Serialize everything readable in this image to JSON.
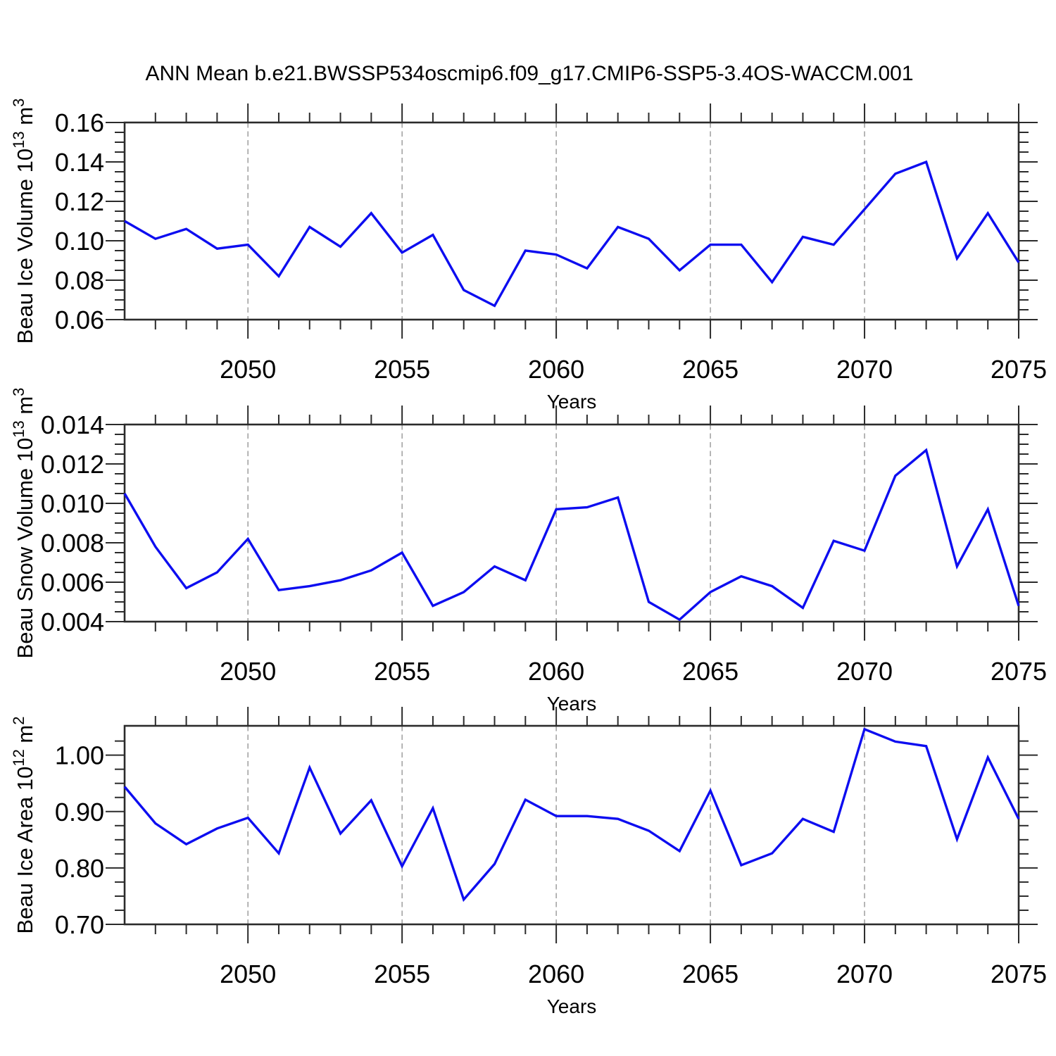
{
  "title": "ANN Mean b.e21.BWSSP534oscmip6.f09_g17.CMIP6-SSP5-3.4OS-WACCM.001",
  "x_axis": {
    "label": "Years",
    "range": [
      2046,
      2075
    ],
    "tick_years": [
      2050,
      2055,
      2060,
      2065,
      2070,
      2075
    ],
    "tick_labels": [
      "2050",
      "2055",
      "2060",
      "2065",
      "2070",
      "2075"
    ],
    "gridline_years": [
      2050,
      2055,
      2060,
      2065,
      2070
    ],
    "minor_step": 1
  },
  "style": {
    "line_color": "#0d0df0",
    "frame_color": "#2b2b2b",
    "grid_color": "#8f8f8f",
    "text_color": "#000000",
    "background": "#ffffff"
  },
  "years": [
    2046,
    2047,
    2048,
    2049,
    2050,
    2051,
    2052,
    2053,
    2054,
    2055,
    2056,
    2057,
    2058,
    2059,
    2060,
    2061,
    2062,
    2063,
    2064,
    2065,
    2066,
    2067,
    2068,
    2069,
    2070,
    2071,
    2072,
    2073,
    2074,
    2075
  ],
  "chart_data": [
    {
      "type": "line",
      "title": "Beau Ice Volume",
      "xlabel": "Years",
      "ylabel": {
        "text": "Beau Ice Volume 10",
        "sup": "13",
        "unit": " m",
        "unit_sup": "3",
        "plain": "Beau Ice Volume 10^13 m^3"
      },
      "ylim": [
        0.06,
        0.16
      ],
      "frame_top": 0.16,
      "yticks": [
        0.06,
        0.08,
        0.1,
        0.12,
        0.14,
        0.16
      ],
      "ytick_labels": [
        "0.06",
        "0.08",
        "0.10",
        "0.12",
        "0.14",
        "0.16"
      ],
      "y_minor_step": 0.005,
      "grid": "vertical-dashed",
      "legend": "none",
      "values": [
        0.11,
        0.101,
        0.106,
        0.096,
        0.098,
        0.082,
        0.107,
        0.097,
        0.114,
        0.094,
        0.103,
        0.075,
        0.067,
        0.095,
        0.093,
        0.086,
        0.107,
        0.101,
        0.085,
        0.098,
        0.098,
        0.079,
        0.102,
        0.098,
        0.116,
        0.134,
        0.14,
        0.091,
        0.114,
        0.089
      ]
    },
    {
      "type": "line",
      "title": "Beau Snow Volume",
      "xlabel": "Years",
      "ylabel": {
        "text": "Beau Snow Volume 10",
        "sup": "13",
        "unit": " m",
        "unit_sup": "3",
        "plain": "Beau Snow Volume 10^13 m^3"
      },
      "ylim": [
        0.004,
        0.014
      ],
      "frame_top": 0.014,
      "yticks": [
        0.004,
        0.006,
        0.008,
        0.01,
        0.012,
        0.014
      ],
      "ytick_labels": [
        "0.004",
        "0.006",
        "0.008",
        "0.010",
        "0.012",
        "0.014"
      ],
      "y_minor_step": 0.0005,
      "grid": "vertical-dashed",
      "legend": "none",
      "values": [
        0.0105,
        0.0078,
        0.0057,
        0.0065,
        0.0082,
        0.0056,
        0.0058,
        0.0061,
        0.0066,
        0.0075,
        0.0048,
        0.0055,
        0.0068,
        0.0061,
        0.0097,
        0.0098,
        0.0103,
        0.005,
        0.0041,
        0.0055,
        0.0063,
        0.0058,
        0.0047,
        0.0081,
        0.0076,
        0.0114,
        0.0127,
        0.0068,
        0.0097,
        0.0048
      ]
    },
    {
      "type": "line",
      "title": "Beau Ice Area",
      "xlabel": "Years",
      "ylabel": {
        "text": "Beau Ice Area 10",
        "sup": "12",
        "unit": " m",
        "unit_sup": "2",
        "plain": "Beau Ice Area 10^12 m^2"
      },
      "ylim": [
        0.7,
        1.05
      ],
      "frame_top": 1.052,
      "yticks": [
        0.7,
        0.8,
        0.9,
        1.0
      ],
      "ytick_labels": [
        "0.70",
        "0.80",
        "0.90",
        "1.00"
      ],
      "y_minor_step": 0.025,
      "grid": "vertical-dashed",
      "legend": "none",
      "values": [
        0.944,
        0.879,
        0.842,
        0.87,
        0.889,
        0.826,
        0.978,
        0.861,
        0.92,
        0.803,
        0.906,
        0.744,
        0.807,
        0.921,
        0.892,
        0.892,
        0.887,
        0.866,
        0.83,
        0.937,
        0.805,
        0.826,
        0.887,
        0.864,
        1.046,
        1.024,
        1.016,
        0.851,
        0.996,
        0.887
      ]
    }
  ]
}
